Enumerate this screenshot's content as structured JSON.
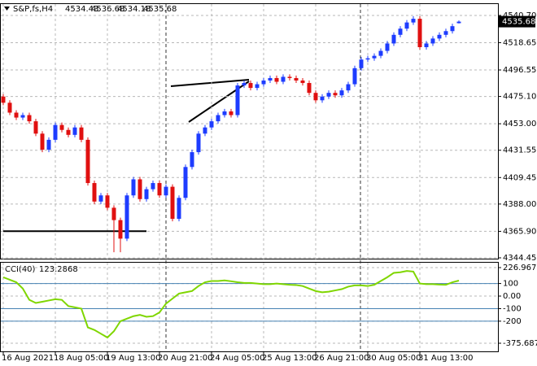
{
  "chart_data": [
    {
      "type": "candlestick",
      "title": "S&P,fs,H4",
      "categories": [
        "16 Aug 2021",
        null,
        null,
        null,
        null,
        null,
        null,
        null,
        "18 Aug 05:00",
        null,
        null,
        null,
        null,
        null,
        null,
        null,
        "19 Aug 13:00",
        null,
        null,
        null,
        null,
        null,
        null,
        null,
        "20 Aug 21:00",
        null,
        null,
        null,
        null,
        null,
        null,
        null,
        "24 Aug 05:00",
        null,
        null,
        null,
        null,
        null,
        null,
        null,
        "25 Aug 13:00",
        null,
        null,
        null,
        null,
        null,
        null,
        null,
        "26 Aug 21:00",
        null,
        null,
        null,
        null,
        null,
        null,
        null,
        "30 Aug 05:00",
        null,
        null,
        null,
        null,
        null,
        null,
        null,
        "31 Aug 13:00",
        null,
        null,
        null,
        null,
        null,
        null
      ],
      "open": [
        4475,
        4470,
        4462,
        4458,
        4460,
        4455,
        4445,
        4432,
        4440,
        4452,
        4448,
        4444,
        4450,
        4440,
        4405,
        4390,
        4395,
        4385,
        4375,
        4360,
        4395,
        4408,
        4392,
        4400,
        4405,
        4395,
        4402,
        4376,
        4393,
        4418,
        4430,
        4445,
        4450,
        4455,
        4460,
        4463,
        4460,
        4484,
        4486,
        4482,
        4485,
        4488,
        4490,
        4487,
        4491,
        4490,
        4488,
        4486,
        4478,
        4472,
        4475,
        4478,
        4476,
        4480,
        4485,
        4498,
        4505,
        4506,
        4508,
        4512,
        4518,
        4525,
        4530,
        4535,
        4538,
        4515,
        4518,
        4522,
        4525,
        4528,
        4534.43
      ],
      "high": [
        4477,
        4472,
        4464,
        4462,
        4462,
        4457,
        4447,
        4442,
        4454,
        4454,
        4450,
        4452,
        4452,
        4442,
        4407,
        4397,
        4397,
        4387,
        4377,
        4397,
        4410,
        4410,
        4402,
        4407,
        4407,
        4404,
        4404,
        4395,
        4420,
        4432,
        4447,
        4452,
        4457,
        4462,
        4465,
        4465,
        4486,
        4488,
        4488,
        4487,
        4490,
        4492,
        4492,
        4493,
        4493,
        4492,
        4490,
        4488,
        4480,
        4477,
        4480,
        4480,
        4482,
        4487,
        4500,
        4507,
        4508,
        4510,
        4514,
        4520,
        4527,
        4532,
        4537,
        4540,
        4540,
        4520,
        4524,
        4527,
        4530,
        4534,
        4536.68
      ],
      "low": [
        4468,
        4460,
        4456,
        4456,
        4453,
        4443,
        4430,
        4430,
        4438,
        4446,
        4442,
        4442,
        4438,
        4403,
        4388,
        4388,
        4383,
        4349,
        4349,
        4358,
        4393,
        4390,
        4390,
        4398,
        4393,
        4393,
        4374,
        4374,
        4391,
        4416,
        4428,
        4443,
        4448,
        4453,
        4458,
        4458,
        4458,
        4482,
        4480,
        4480,
        4483,
        4486,
        4485,
        4485,
        4488,
        4486,
        4484,
        4476,
        4470,
        4470,
        4473,
        4474,
        4474,
        4478,
        4483,
        4496,
        4503,
        4504,
        4506,
        4510,
        4516,
        4523,
        4528,
        4533,
        4513,
        4513,
        4516,
        4520,
        4523,
        4526,
        4534.18
      ],
      "close": [
        4470,
        4462,
        4458,
        4460,
        4455,
        4445,
        4432,
        4440,
        4452,
        4448,
        4444,
        4450,
        4440,
        4405,
        4390,
        4395,
        4385,
        4375,
        4360,
        4395,
        4408,
        4392,
        4400,
        4405,
        4395,
        4402,
        4376,
        4393,
        4418,
        4430,
        4445,
        4450,
        4455,
        4460,
        4463,
        4460,
        4484,
        4486,
        4482,
        4485,
        4488,
        4490,
        4487,
        4491,
        4490,
        4488,
        4486,
        4478,
        4472,
        4475,
        4478,
        4476,
        4480,
        4485,
        4498,
        4505,
        4506,
        4508,
        4512,
        4518,
        4525,
        4530,
        4535,
        4538,
        4515,
        4518,
        4522,
        4525,
        4528,
        4532,
        4535.68
      ],
      "up_color": "#1e3cff",
      "down_color": "#e01010",
      "support": 4366,
      "ylim": [
        4344.45,
        4549.9
      ],
      "yticks": [
        {
          "value": 4540.7,
          "label": "4540.70"
        },
        {
          "value": 4518.65,
          "label": "4518.65"
        },
        4496.55,
        {
          "value": 4475.1,
          "label": "4475.10"
        },
        {
          "value": 4453,
          "label": "4453.00"
        },
        4431.55,
        4409.45,
        {
          "value": 4388,
          "label": "4388.00"
        },
        {
          "value": 4365.9,
          "label": "4365.90"
        },
        4344.45
      ],
      "grid": true
    },
    {
      "type": "line",
      "series": [
        {
          "name": "CCI(40)",
          "color": "#7fd600",
          "values": [
            150,
            130,
            110,
            60,
            -30,
            -55,
            -45,
            -35,
            -25,
            -30,
            -80,
            -90,
            -100,
            -250,
            -270,
            -300,
            -330,
            -280,
            -200,
            -180,
            -160,
            -150,
            -165,
            -160,
            -130,
            -60,
            -20,
            20,
            30,
            40,
            80,
            110,
            120,
            120,
            125,
            118,
            110,
            105,
            105,
            100,
            95,
            95,
            100,
            95,
            90,
            88,
            80,
            60,
            40,
            30,
            35,
            45,
            55,
            75,
            85,
            85,
            80,
            90,
            120,
            150,
            185,
            190,
            200,
            195,
            100,
            95,
            95,
            92,
            90,
            110,
            123.2868
          ]
        }
      ],
      "levels": [
        100,
        -100,
        -200
      ],
      "ylim": [
        -440.5,
        272.3
      ],
      "yticks": [
        226.9672,
        100,
        {
          "value": 0,
          "label": "0.00"
        },
        -100,
        -200,
        -375.6877
      ],
      "grid": true
    }
  ]
}
